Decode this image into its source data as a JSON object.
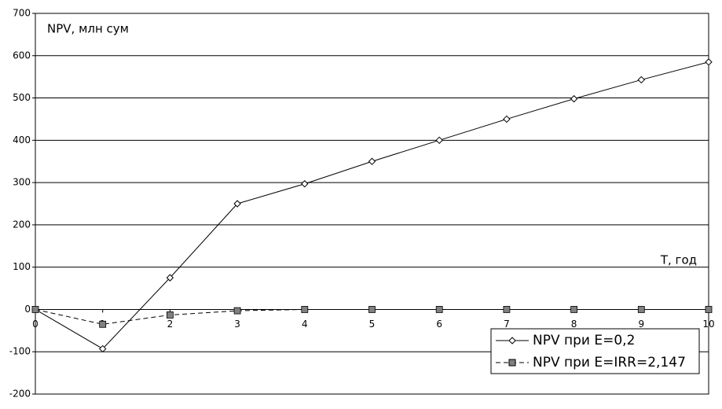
{
  "chart_data": {
    "type": "line",
    "annotation": "NPV, млн сум",
    "x_label": "T, год",
    "x": [
      0,
      1,
      2,
      3,
      4,
      5,
      6,
      7,
      8,
      9,
      10
    ],
    "xlim": [
      0,
      10
    ],
    "xticks": [
      0,
      1,
      2,
      3,
      4,
      5,
      6,
      7,
      8,
      9,
      10
    ],
    "ylim": [
      -200,
      700
    ],
    "yticks": [
      -200,
      -100,
      0,
      100,
      200,
      300,
      400,
      500,
      600,
      700
    ],
    "grid": true,
    "legend": "bottom-right",
    "series": [
      {
        "name": "NPV при E=0,2",
        "color": "#000000",
        "marker": "diamond",
        "dash": false,
        "values": [
          0,
          -93,
          75,
          250,
          297,
          350,
          400,
          450,
          498,
          543,
          585
        ]
      },
      {
        "name": "NPV при E=IRR=2,147",
        "color": "#808080",
        "marker": "square",
        "dash": true,
        "values": [
          0,
          -35,
          -13,
          -3,
          0,
          0,
          0,
          0,
          0,
          0,
          0
        ]
      }
    ]
  }
}
